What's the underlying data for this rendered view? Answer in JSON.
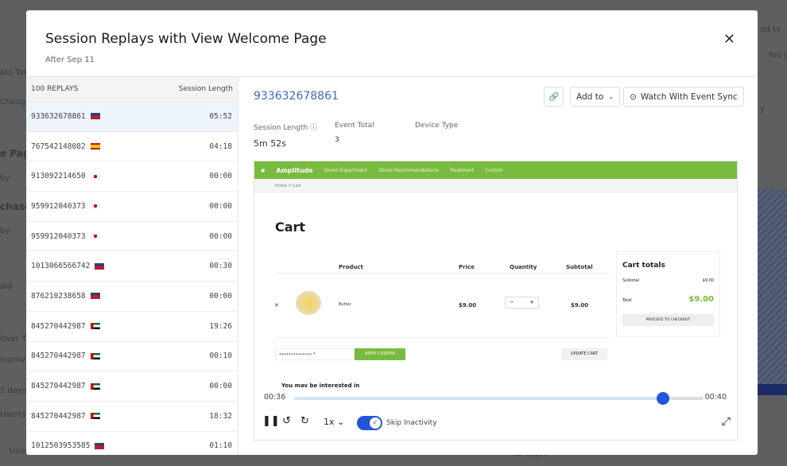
{
  "background": {
    "items": [
      "ata Table",
      "Changes",
      "e Page",
      "by",
      "chase",
      "by",
      "did",
      "Over T",
      "mprove",
      "1 days",
      "User(s)",
      "User",
      "dd to",
      "You c",
      "y",
      "All Users"
    ]
  },
  "modal": {
    "title": "Session Replays with View Welcome Page",
    "subtitle": "After Sep 11",
    "close_icon": "close-icon"
  },
  "list": {
    "header_count": "100 REPLAYS",
    "header_length": "Session Length",
    "rows": [
      {
        "id": "933632678861",
        "flag": "us",
        "length": "05:52",
        "selected": true
      },
      {
        "id": "767542148082",
        "flag": "es",
        "length": "04:18"
      },
      {
        "id": "913092214650",
        "flag": "jp",
        "length": "00:00"
      },
      {
        "id": "959912040373",
        "flag": "jp",
        "length": "00:00"
      },
      {
        "id": "959912040373",
        "flag": "jp",
        "length": "00:00"
      },
      {
        "id": "1013066566742",
        "flag": "us",
        "length": "00:30"
      },
      {
        "id": "876210238658",
        "flag": "us",
        "length": "00:00"
      },
      {
        "id": "845270442987",
        "flag": "ae",
        "length": "19:26"
      },
      {
        "id": "845270442987",
        "flag": "ae",
        "length": "00:10"
      },
      {
        "id": "845270442987",
        "flag": "ae",
        "length": "00:00"
      },
      {
        "id": "845270442987",
        "flag": "ae",
        "length": "18:32"
      },
      {
        "id": "1012503953585",
        "flag": "us",
        "length": "01:10"
      }
    ]
  },
  "detail": {
    "session_id": "933632678861",
    "add_to": "Add to",
    "watch": "Watch With Event Sync",
    "session_length_label": "Session Length",
    "session_length": "5m 52s",
    "event_total_label": "Event Total",
    "event_total": "3",
    "device_type_label": "Device Type"
  },
  "preview": {
    "brand": "Amplitude",
    "toggle1": "Demo Experiment",
    "toggle2": "Demo Recommendations",
    "opt1": "Treatment",
    "opt2": "Control",
    "breadcrumb": "Home > Cart",
    "title": "Cart",
    "headers": [
      "Product",
      "Price",
      "Quantity",
      "Subtotal"
    ],
    "item": {
      "name": "Butter",
      "price": "$9.00",
      "subtotal": "$9.00"
    },
    "totals_title": "Cart totals",
    "subtotal_label": "Subtotal",
    "subtotal": "$9.00",
    "total_label": "Total",
    "total": "$9.00",
    "checkout": "PROCEED TO CHECKOUT",
    "coupon_placeholder": "••••••••••••••  *",
    "apply": "APPLY COUPON",
    "update": "UPDATE CART",
    "interested": "You may be interested in",
    "accent": "#79bb3f"
  },
  "player": {
    "current": "00:36",
    "end": "00:40",
    "progress": 0.9,
    "speed": "1x",
    "skip_label": "Skip Inactivity",
    "skip_on": true
  }
}
